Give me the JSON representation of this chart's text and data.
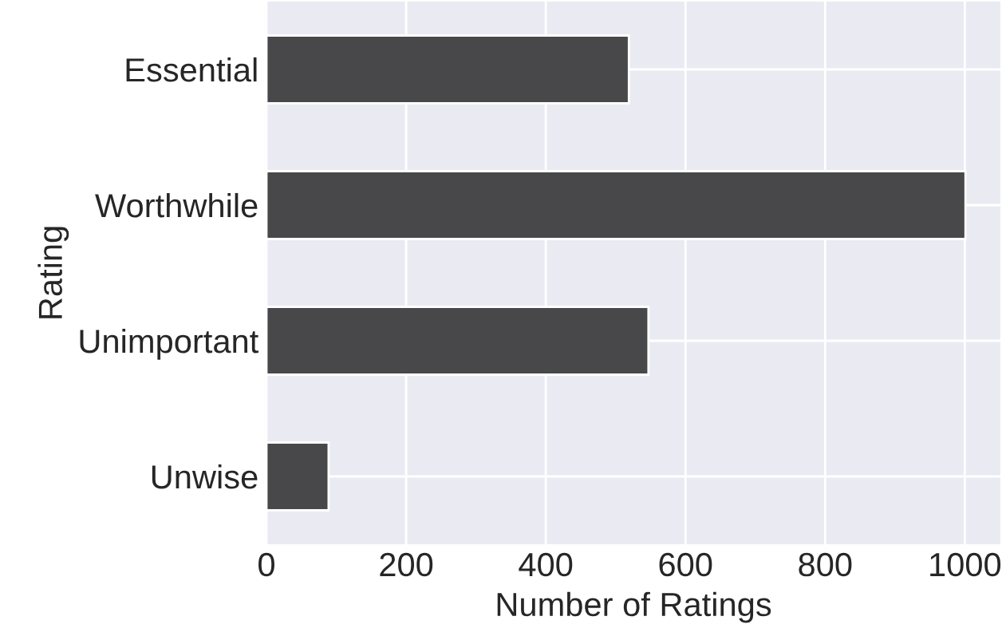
{
  "chart_data": {
    "type": "bar",
    "orientation": "horizontal",
    "xlabel": "Number of Ratings",
    "ylabel": "Rating",
    "categories": [
      "Essential",
      "Worthwhile",
      "Unimportant",
      "Unwise"
    ],
    "values": [
      519,
      1001,
      547,
      89
    ],
    "color": "#48484a",
    "xlim": [
      0,
      1051
    ],
    "xticks": [
      0,
      200,
      400,
      600,
      800,
      1000
    ],
    "grid": true
  }
}
